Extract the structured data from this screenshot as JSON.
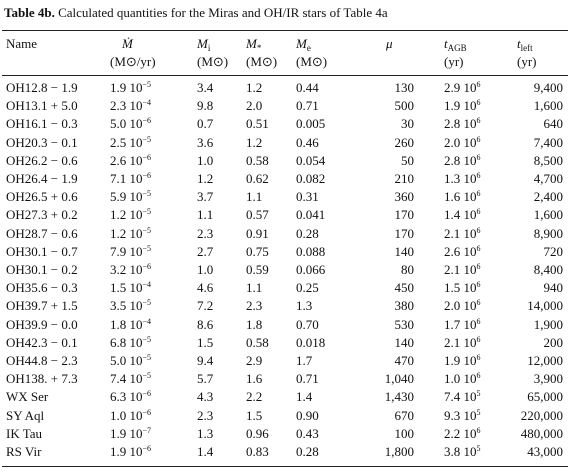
{
  "caption": {
    "label": "Table 4b.",
    "text": "Calculated quantities for the Miras and OH/IR stars of Table 4a"
  },
  "table": {
    "headers": [
      {
        "symbol": "Name"
      },
      {
        "symbol": "Ṁ",
        "unit": "(M⊙/yr)"
      },
      {
        "symbol": "M",
        "sub": "i",
        "unit": "(M⊙)"
      },
      {
        "symbol": "M",
        "sub": "*",
        "unit": "(M⊙)"
      },
      {
        "symbol": "M",
        "sub": "e",
        "unit": "(M⊙)"
      },
      {
        "symbol": "μ"
      },
      {
        "symbol": "t",
        "sub": "AGB",
        "unit": "(yr)"
      },
      {
        "symbol": "t",
        "sub": "left",
        "unit": "(yr)"
      }
    ],
    "rows": [
      [
        "OH12.8 − 1.9",
        {
          "base": "1.9 10",
          "exp": "−5"
        },
        "3.4",
        "1.2",
        "0.44",
        "130",
        {
          "base": "2.9 10",
          "exp": "6"
        },
        "9,400"
      ],
      [
        "OH13.1 + 5.0",
        {
          "base": "2.3 10",
          "exp": "−4"
        },
        "9.8",
        "2.0",
        "0.71",
        "500",
        {
          "base": "1.9 10",
          "exp": "6"
        },
        "1,600"
      ],
      [
        "OH16.1 − 0.3",
        {
          "base": "5.0 10",
          "exp": "−6"
        },
        "0.7",
        "0.51",
        "0.005",
        "30",
        {
          "base": "2.8 10",
          "exp": "6"
        },
        "640"
      ],
      [
        "OH20.3 − 0.1",
        {
          "base": "2.5 10",
          "exp": "−5"
        },
        "3.6",
        "1.2",
        "0.46",
        "260",
        {
          "base": "2.0 10",
          "exp": "6"
        },
        "7,400"
      ],
      [
        "OH26.2 − 0.6",
        {
          "base": "2.6 10",
          "exp": "−6"
        },
        "1.0",
        "0.58",
        "0.054",
        "50",
        {
          "base": "2.8 10",
          "exp": "6"
        },
        "8,500"
      ],
      [
        "OH26.4 − 1.9",
        {
          "base": "7.1 10",
          "exp": "−6"
        },
        "1.2",
        "0.62",
        "0.082",
        "210",
        {
          "base": "1.3 10",
          "exp": "6"
        },
        "4,700"
      ],
      [
        "OH26.5 + 0.6",
        {
          "base": "5.9 10",
          "exp": "−5"
        },
        "3.7",
        "1.1",
        "0.31",
        "360",
        {
          "base": "1.6 10",
          "exp": "6"
        },
        "2,400"
      ],
      [
        "OH27.3 + 0.2",
        {
          "base": "1.2 10",
          "exp": "−5"
        },
        "1.1",
        "0.57",
        "0.041",
        "170",
        {
          "base": "1.4 10",
          "exp": "6"
        },
        "1,600"
      ],
      [
        "OH28.7 − 0.6",
        {
          "base": "1.2 10",
          "exp": "−5"
        },
        "2.3",
        "0.91",
        "0.28",
        "170",
        {
          "base": "2.1 10",
          "exp": "6"
        },
        "8,900"
      ],
      [
        "OH30.1 − 0.7",
        {
          "base": "7.9 10",
          "exp": "−5"
        },
        "2.7",
        "0.75",
        "0.088",
        "140",
        {
          "base": "2.6 10",
          "exp": "6"
        },
        "720"
      ],
      [
        "OH30.1 − 0.2",
        {
          "base": "3.2 10",
          "exp": "−6"
        },
        "1.0",
        "0.59",
        "0.066",
        "80",
        {
          "base": "2.1 10",
          "exp": "6"
        },
        "8,400"
      ],
      [
        "OH35.6 − 0.3",
        {
          "base": "1.5 10",
          "exp": "−4"
        },
        "4.6",
        "1.1",
        "0.25",
        "450",
        {
          "base": "1.5 10",
          "exp": "6"
        },
        "940"
      ],
      [
        "OH39.7 + 1.5",
        {
          "base": "3.5 10",
          "exp": "−5"
        },
        "7.2",
        "2.3",
        "1.3",
        "380",
        {
          "base": "2.0 10",
          "exp": "6"
        },
        "14,000"
      ],
      [
        "OH39.9 − 0.0",
        {
          "base": "1.8 10",
          "exp": "−4"
        },
        "8.6",
        "1.8",
        "0.70",
        "530",
        {
          "base": "1.7 10",
          "exp": "6"
        },
        "1,900"
      ],
      [
        "OH42.3 − 0.1",
        {
          "base": "6.8 10",
          "exp": "−5"
        },
        "1.5",
        "0.58",
        "0.018",
        "140",
        {
          "base": "2.1 10",
          "exp": "6"
        },
        "200"
      ],
      [
        "OH44.8 − 2.3",
        {
          "base": "5.0 10",
          "exp": "−5"
        },
        "9.4",
        "2.9",
        "1.7",
        "470",
        {
          "base": "1.9 10",
          "exp": "6"
        },
        "12,000"
      ],
      [
        "OH138. + 7.3",
        {
          "base": "7.4 10",
          "exp": "−5"
        },
        "5.7",
        "1.6",
        "0.71",
        "1,040",
        {
          "base": "1.0 10",
          "exp": "6"
        },
        "3,900"
      ],
      [
        "WX Ser",
        {
          "base": "6.3 10",
          "exp": "−6"
        },
        "4.3",
        "2.2",
        "1.4",
        "1,430",
        {
          "base": "7.4 10",
          "exp": "5"
        },
        "65,000"
      ],
      [
        "SY Aql",
        {
          "base": "1.0 10",
          "exp": "−6"
        },
        "2.3",
        "1.5",
        "0.90",
        "670",
        {
          "base": "9.3 10",
          "exp": "5"
        },
        "220,000"
      ],
      [
        "IK Tau",
        {
          "base": "1.9 10",
          "exp": "−7"
        },
        "1.3",
        "0.96",
        "0.43",
        "100",
        {
          "base": "2.2 10",
          "exp": "6"
        },
        "480,000"
      ],
      [
        "RS Vir",
        {
          "base": "1.9 10",
          "exp": "−6"
        },
        "1.4",
        "0.83",
        "0.28",
        "1,800",
        {
          "base": "3.8 10",
          "exp": "5"
        },
        "43,000"
      ]
    ]
  }
}
